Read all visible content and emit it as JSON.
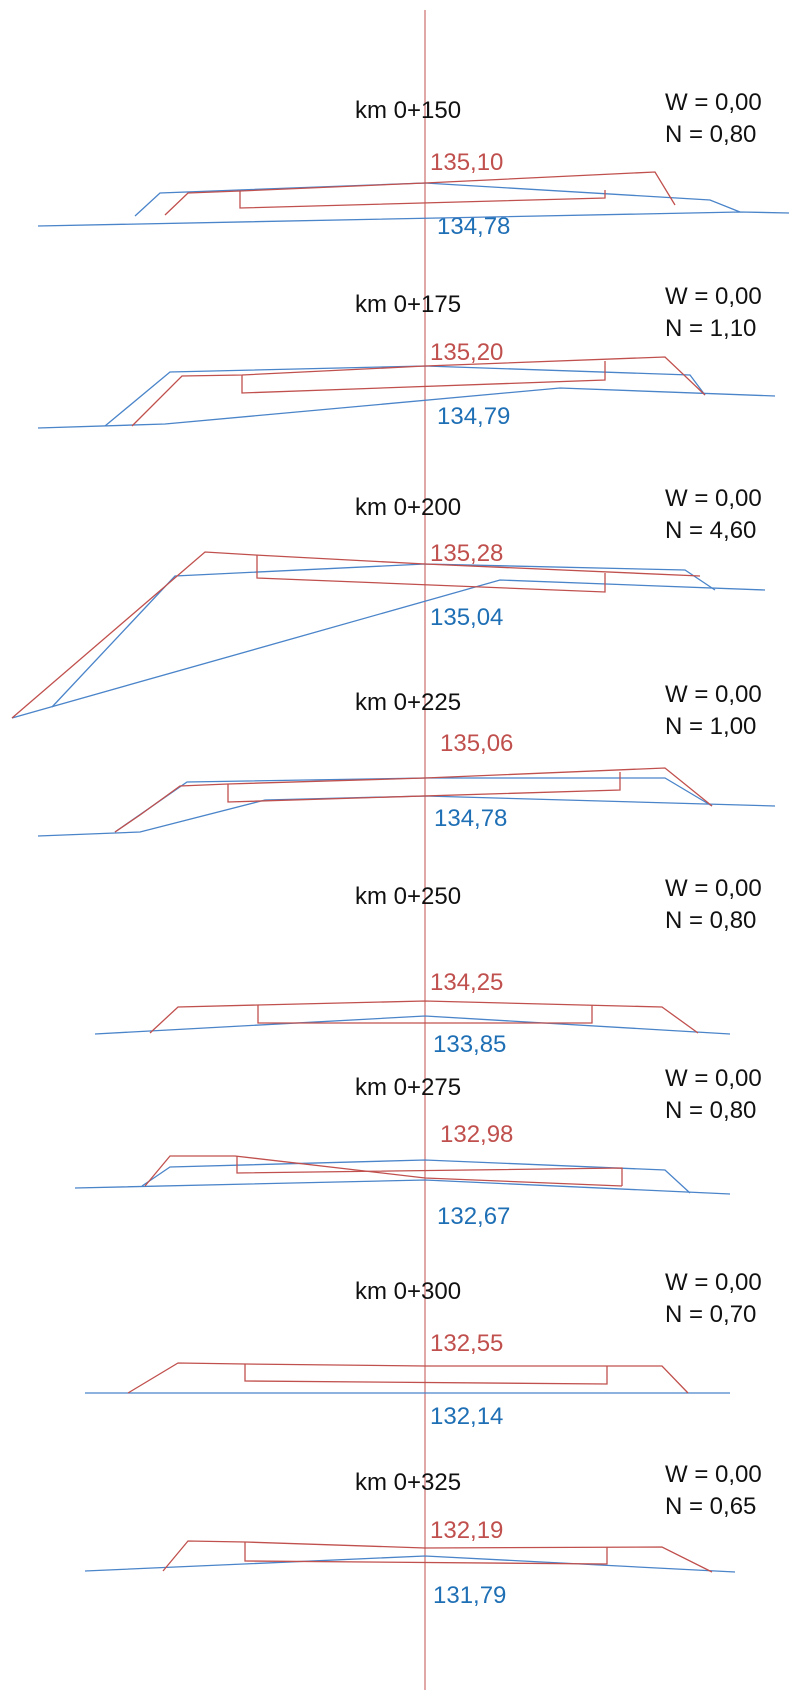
{
  "sections": [
    {
      "km": "km 0+150",
      "w": "W = 0,00",
      "n": "N  = 0,80",
      "design": "135,10",
      "terrain": "134,78"
    },
    {
      "km": "km 0+175",
      "w": "W = 0,00",
      "n": "N  = 1,10",
      "design": "135,20",
      "terrain": "134,79"
    },
    {
      "km": "km 0+200",
      "w": "W = 0,00",
      "n": "N  = 4,60",
      "design": "135,28",
      "terrain": "135,04"
    },
    {
      "km": "km 0+225",
      "w": "W = 0,00",
      "n": "N  = 1,00",
      "design": "135,06",
      "terrain": "134,78"
    },
    {
      "km": "km 0+250",
      "w": "W = 0,00",
      "n": "N  = 0,80",
      "design": "134,25",
      "terrain": "133,85"
    },
    {
      "km": "km 0+275",
      "w": "W = 0,00",
      "n": "N  = 0,80",
      "design": "132,98",
      "terrain": "132,67"
    },
    {
      "km": "km 0+300",
      "w": "W = 0,00",
      "n": "N  = 0,70",
      "design": "132,55",
      "terrain": "132,14"
    },
    {
      "km": "km 0+325",
      "w": "W = 0,00",
      "n": "N  = 0,65",
      "design": "132,19",
      "terrain": "131,79"
    }
  ],
  "colors": {
    "design": "#c0504d",
    "terrain": "#1f6fb5",
    "axis": "#c0504d",
    "text": "#111111"
  }
}
